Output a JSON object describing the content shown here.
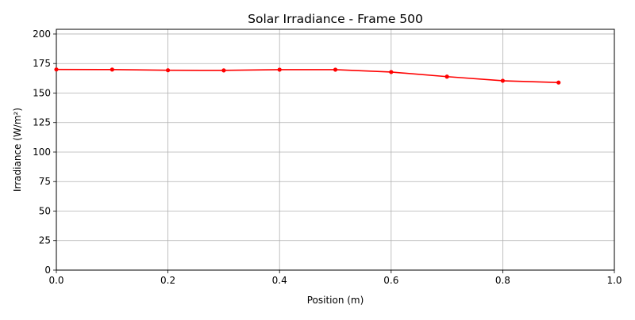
{
  "chart_data": {
    "type": "line",
    "title": "Solar Irradiance - Frame 500",
    "xlabel": "Position (m)",
    "ylabel": "Irradiance (W/m²)",
    "xlim": [
      0.0,
      1.0
    ],
    "ylim": [
      0,
      204
    ],
    "x_ticks": [
      0.0,
      0.2,
      0.4,
      0.6,
      0.8,
      1.0
    ],
    "x_tick_labels": [
      "0.0",
      "0.2",
      "0.4",
      "0.6",
      "0.8",
      "1.0"
    ],
    "y_ticks": [
      0,
      25,
      50,
      75,
      100,
      125,
      150,
      175,
      200
    ],
    "y_tick_labels": [
      "0",
      "25",
      "50",
      "75",
      "100",
      "125",
      "150",
      "175",
      "200"
    ],
    "grid": true,
    "legend": "none",
    "series": [
      {
        "color": "#ff0000",
        "marker": "circle",
        "x": [
          0.0,
          0.1,
          0.2,
          0.3,
          0.4,
          0.5,
          0.6,
          0.7,
          0.8,
          0.9
        ],
        "y": [
          170.0,
          169.9,
          169.3,
          169.2,
          169.8,
          169.8,
          167.8,
          163.9,
          160.4,
          158.9
        ]
      }
    ]
  }
}
